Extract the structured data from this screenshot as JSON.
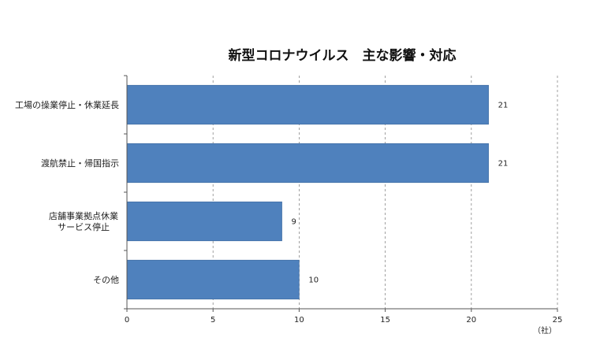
{
  "chart_data": {
    "type": "bar",
    "orientation": "horizontal",
    "title": "新型コロナウイルス　主な影響・対応",
    "categories": [
      [
        "工場の操業停止・休業延長"
      ],
      [
        "渡航禁止・帰国指示"
      ],
      [
        "店舗事業拠点休業",
        "サービス停止"
      ],
      [
        "その他"
      ]
    ],
    "values": [
      21,
      21,
      9,
      10
    ],
    "xlim": [
      0,
      25
    ],
    "xticks": [
      0,
      5,
      10,
      15,
      20,
      25
    ],
    "unit_label": "（社）",
    "grid": "vertical-dashed",
    "bar_color": "#4f81bd"
  }
}
